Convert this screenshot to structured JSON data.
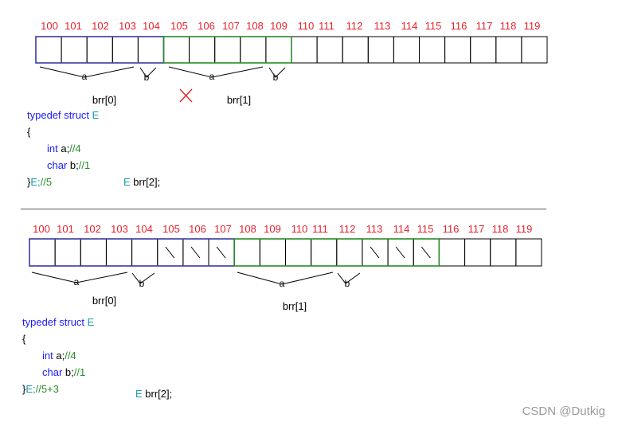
{
  "diagram1": {
    "addresses": [
      "100",
      "101",
      "102",
      "103",
      "104",
      "105",
      "106",
      "107",
      "108",
      "109",
      "110",
      "111",
      "112",
      "113",
      "114",
      "115",
      "116",
      "117",
      "118",
      "119"
    ],
    "a_label": "a",
    "b_label": "b",
    "elem0_label": "brr[0]",
    "elem1_label": "brr[1]",
    "cross_mark": "X",
    "code": {
      "line1_kw": "typedef struct",
      "line1_name": "E",
      "line2": "{",
      "line3_type": "int",
      "line3_var": " a;",
      "line3_comment": "//4",
      "line4_type": "char",
      "line4_var": " b;",
      "line4_comment": "//1",
      "line5_brace": "}",
      "line5_name": "E;",
      "line5_comment": "//5",
      "decl_type": "E",
      "decl_var": " brr[2];"
    }
  },
  "diagram2": {
    "addresses": [
      "100",
      "101",
      "102",
      "103",
      "104",
      "105",
      "106",
      "107",
      "108",
      "109",
      "110",
      "111",
      "112",
      "113",
      "114",
      "115",
      "116",
      "117",
      "118",
      "119"
    ],
    "a_label": "a",
    "b_label": "b",
    "elem0_label": "brr[0]",
    "elem1_label": "brr[1]",
    "code": {
      "line1_kw": "typedef struct",
      "line1_name": "E",
      "line2": "{",
      "line3_type": "int",
      "line3_var": " a;",
      "line3_comment": "//4",
      "line4_type": "char",
      "line4_var": " b;",
      "line4_comment": "//1",
      "line5_brace": "}",
      "line5_name": "E;",
      "line5_comment": "//5+3",
      "decl_type": "E",
      "decl_var": " brr[2];"
    }
  },
  "watermark": "CSDN @Dutkig",
  "colors": {
    "address": "#e8202a",
    "struct0": "#3a3aa0",
    "struct1": "#2a8a2a",
    "keyword": "#1a1aff",
    "type_name": "#1a9aa8",
    "comment": "#2a8a2a"
  }
}
